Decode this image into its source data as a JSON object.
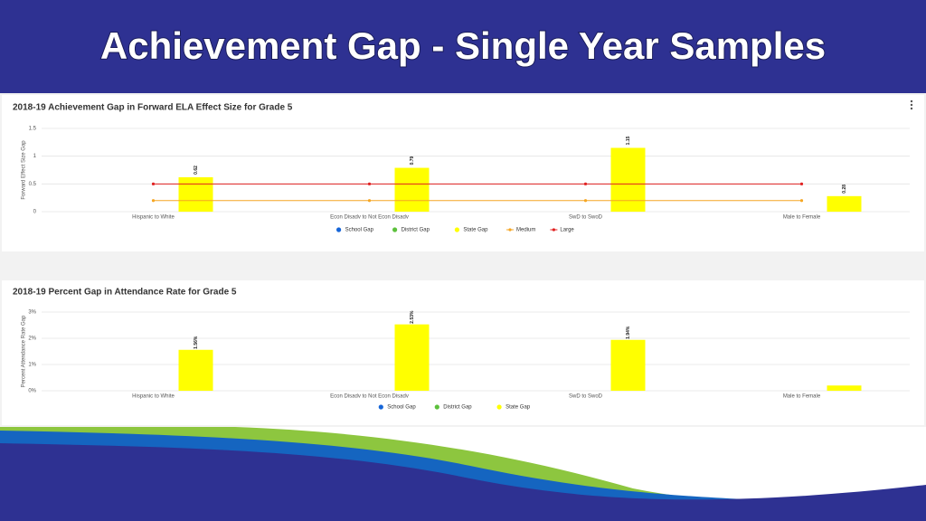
{
  "slide_title": "Achievement Gap - Single Year Samples",
  "chart_data": [
    {
      "type": "bar",
      "title": "2018-19 Achievement Gap in Forward ELA Effect Size for Grade 5",
      "y_label": "Forward Effect Size Gap",
      "categories": [
        "Hispanic to White",
        "Econ Disadv to Not Econ Disadv",
        "SwD to SwoD",
        "Male to Female"
      ],
      "series": [
        {
          "name": "School Gap",
          "color": "#1565d8",
          "values": [
            null,
            null,
            null,
            null
          ]
        },
        {
          "name": "District Gap",
          "color": "#5cc03c",
          "values": [
            null,
            null,
            null,
            null
          ]
        },
        {
          "name": "State Gap",
          "color": "#ffff00",
          "values": [
            0.62,
            0.79,
            1.15,
            0.28
          ]
        },
        {
          "name": "Medium",
          "type": "line",
          "color": "#f5a623",
          "values": [
            0.2,
            0.2,
            0.2,
            0.2
          ]
        },
        {
          "name": "Large",
          "type": "line",
          "color": "#e02020",
          "values": [
            0.5,
            0.5,
            0.5,
            0.5
          ]
        }
      ],
      "ylim": [
        0,
        1.5
      ],
      "yticks": [
        0,
        0.5,
        1,
        1.5
      ],
      "grid": true
    },
    {
      "type": "bar",
      "title": "2018-19 Percent Gap in Attendance Rate for Grade 5",
      "y_label": "Percent Attendance Rate Gap",
      "categories": [
        "Hispanic to White",
        "Econ Disadv to Not Econ Disadv",
        "SwD to SwoD",
        "Male to Female"
      ],
      "series": [
        {
          "name": "School Gap",
          "color": "#1565d8",
          "values": [
            null,
            null,
            null,
            null
          ]
        },
        {
          "name": "District Gap",
          "color": "#5cc03c",
          "values": [
            null,
            null,
            null,
            null
          ]
        },
        {
          "name": "State Gap",
          "color": "#ffff00",
          "values": [
            1.56,
            2.53,
            1.94,
            0.2
          ],
          "value_labels": [
            "1.56%",
            "2.53%",
            "1.94%",
            null
          ]
        }
      ],
      "ylim": [
        0,
        3
      ],
      "yticks": [
        {
          "value": 0,
          "label": "0%"
        },
        {
          "value": 1,
          "label": "1%"
        },
        {
          "value": 2,
          "label": "2%"
        },
        {
          "value": 3,
          "label": "3%"
        }
      ],
      "grid": true
    }
  ]
}
